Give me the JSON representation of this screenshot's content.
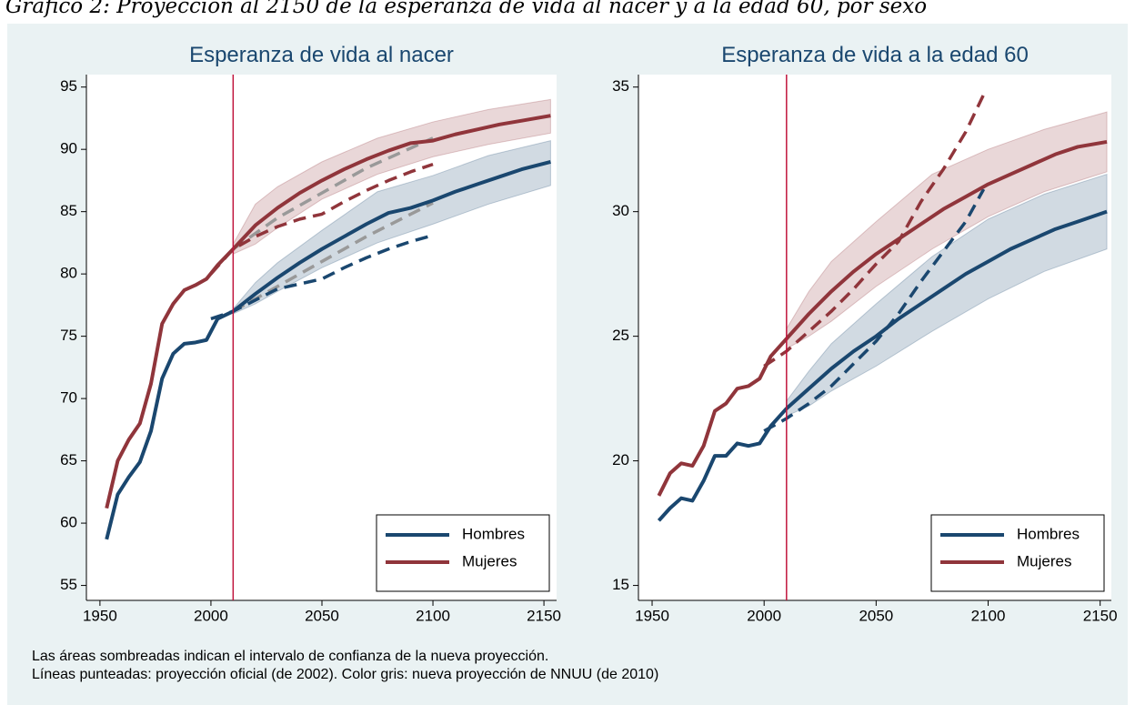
{
  "title": "Gráfico 2: Proyección al 2150 de la esperanza de vida al nacer y a la edad 60, por sexo",
  "notes": [
    "Las áreas sombreadas indican el intervalo de confianza de la nueva proyección.",
    "Líneas punteadas: proyección oficial (de 2002). Color gris: nueva proyección de NNUU (de 2010)"
  ],
  "chart_data": [
    {
      "type": "line",
      "title": "Esperanza de vida al nacer",
      "xlim": [
        1943.9,
        2155.7
      ],
      "ylim": [
        53.8,
        96
      ],
      "xticks": [
        1950,
        2000,
        2050,
        2100,
        2150
      ],
      "yticks": [
        55,
        60,
        65,
        70,
        75,
        80,
        85,
        90,
        95
      ],
      "grid": false,
      "legend": "lower right",
      "vline": 2010,
      "vline_color": "#c0143c",
      "series": [
        {
          "name": "Hombres",
          "color": "#1a476f",
          "x": [
            1953,
            1958,
            1963,
            1968,
            1973,
            1978,
            1983,
            1988,
            1993,
            1998,
            2003,
            2010,
            2020,
            2030,
            2040,
            2050,
            2060,
            2070,
            2080,
            2090,
            2100,
            2110,
            2120,
            2130,
            2140,
            2153
          ],
          "values": [
            58.7,
            62.3,
            63.7,
            64.9,
            67.4,
            71.6,
            73.6,
            74.4,
            74.5,
            74.7,
            76.4,
            77.0,
            78.4,
            79.7,
            80.9,
            82.0,
            83.0,
            84.0,
            84.9,
            85.3,
            85.9,
            86.6,
            87.2,
            87.8,
            88.4,
            89.0
          ],
          "band": {
            "x": [
              2010,
              2020,
              2030,
              2050,
              2075,
              2100,
              2125,
              2153
            ],
            "lower": [
              76.8,
              77.6,
              78.6,
              80.5,
              82.5,
              84.0,
              85.6,
              87.1
            ],
            "upper": [
              77.2,
              79.3,
              80.9,
              83.5,
              86.6,
              87.9,
              89.5,
              90.7
            ]
          }
        },
        {
          "name": "Mujeres",
          "color": "#90353b",
          "x": [
            1953,
            1958,
            1963,
            1968,
            1973,
            1978,
            1983,
            1988,
            1993,
            1998,
            2003,
            2010,
            2020,
            2030,
            2040,
            2050,
            2060,
            2070,
            2080,
            2090,
            2100,
            2110,
            2120,
            2130,
            2140,
            2153
          ],
          "values": [
            61.2,
            65.0,
            66.7,
            68.0,
            71.2,
            76.0,
            77.6,
            78.7,
            79.1,
            79.6,
            80.7,
            82.0,
            83.9,
            85.3,
            86.5,
            87.5,
            88.4,
            89.2,
            89.9,
            90.5,
            90.7,
            91.2,
            91.6,
            92.0,
            92.3,
            92.7
          ],
          "band": {
            "x": [
              2010,
              2020,
              2030,
              2050,
              2075,
              2100,
              2125,
              2153
            ],
            "lower": [
              81.6,
              82.4,
              83.7,
              86.0,
              88.0,
              89.4,
              90.4,
              91.3
            ],
            "upper": [
              82.4,
              85.6,
              87.0,
              89.0,
              90.9,
              92.2,
              93.2,
              94.0
            ]
          }
        },
        {
          "color": "#999999",
          "dashed": true,
          "x": [
            2010,
            2030,
            2050,
            2070,
            2100
          ],
          "values": [
            77.0,
            79.0,
            81.0,
            83.0,
            85.7
          ]
        },
        {
          "color": "#999999",
          "dashed": true,
          "x": [
            2010,
            2030,
            2050,
            2070,
            2100
          ],
          "values": [
            82.0,
            84.5,
            86.5,
            88.5,
            90.9
          ]
        },
        {
          "color": "#1a476f",
          "dashed": true,
          "x": [
            2000,
            2010,
            2020,
            2030,
            2040,
            2050,
            2060,
            2070,
            2080,
            2090,
            2100
          ],
          "values": [
            76.4,
            77.0,
            77.9,
            78.8,
            79.2,
            79.6,
            80.5,
            81.3,
            82.0,
            82.6,
            83.1
          ]
        },
        {
          "color": "#90353b",
          "dashed": true,
          "x": [
            2000,
            2010,
            2020,
            2030,
            2040,
            2050,
            2060,
            2070,
            2080,
            2090,
            2100
          ],
          "values": [
            80.0,
            82.0,
            83.0,
            83.8,
            84.4,
            84.8,
            85.8,
            86.7,
            87.5,
            88.2,
            88.8
          ]
        }
      ]
    },
    {
      "type": "line",
      "title": "Esperanza de vida a la edad 60",
      "xlim": [
        1943.9,
        2155
      ],
      "ylim": [
        14.4,
        35.5
      ],
      "xticks": [
        1950,
        2000,
        2050,
        2100,
        2150
      ],
      "yticks": [
        15,
        20,
        25,
        30,
        35
      ],
      "grid": false,
      "legend": "lower right",
      "vline": 2010,
      "vline_color": "#c0143c",
      "series": [
        {
          "name": "Hombres",
          "color": "#1a476f",
          "x": [
            1953,
            1958,
            1963,
            1968,
            1973,
            1978,
            1983,
            1988,
            1993,
            1998,
            2003,
            2010,
            2020,
            2030,
            2040,
            2050,
            2060,
            2070,
            2080,
            2090,
            2100,
            2110,
            2120,
            2130,
            2140,
            2153
          ],
          "values": [
            17.6,
            18.1,
            18.5,
            18.4,
            19.2,
            20.2,
            20.2,
            20.7,
            20.6,
            20.7,
            21.4,
            22.1,
            22.9,
            23.7,
            24.4,
            25.0,
            25.7,
            26.3,
            26.9,
            27.5,
            28.0,
            28.5,
            28.9,
            29.3,
            29.6,
            30.0
          ],
          "band": {
            "x": [
              2010,
              2020,
              2030,
              2050,
              2075,
              2100,
              2125,
              2153
            ],
            "lower": [
              21.8,
              22.2,
              22.8,
              23.8,
              25.2,
              26.5,
              27.6,
              28.5
            ],
            "upper": [
              22.4,
              23.6,
              24.7,
              26.3,
              28.2,
              29.7,
              30.7,
              31.5
            ]
          }
        },
        {
          "name": "Mujeres",
          "color": "#90353b",
          "x": [
            1953,
            1958,
            1963,
            1968,
            1973,
            1978,
            1983,
            1988,
            1993,
            1998,
            2003,
            2010,
            2020,
            2030,
            2040,
            2050,
            2060,
            2070,
            2080,
            2090,
            2100,
            2110,
            2120,
            2130,
            2140,
            2153
          ],
          "values": [
            18.6,
            19.5,
            19.9,
            19.8,
            20.6,
            22.0,
            22.3,
            22.9,
            23.0,
            23.3,
            24.2,
            24.9,
            25.9,
            26.8,
            27.6,
            28.3,
            28.9,
            29.5,
            30.1,
            30.6,
            31.1,
            31.5,
            31.9,
            32.3,
            32.6,
            32.8
          ],
          "band": {
            "x": [
              2010,
              2020,
              2030,
              2050,
              2075,
              2100,
              2125,
              2153
            ],
            "lower": [
              24.5,
              25.0,
              25.6,
              27.0,
              28.5,
              29.8,
              30.8,
              31.6
            ],
            "upper": [
              25.3,
              26.8,
              28.0,
              29.6,
              31.5,
              32.5,
              33.3,
              34.0
            ]
          }
        },
        {
          "color": "#1a476f",
          "dashed": true,
          "x": [
            2000,
            2010,
            2020,
            2030,
            2040,
            2050,
            2060,
            2070,
            2080,
            2090,
            2098
          ],
          "values": [
            21.2,
            21.7,
            22.3,
            23.0,
            23.9,
            24.8,
            25.9,
            27.2,
            28.4,
            29.6,
            30.9
          ]
        },
        {
          "color": "#90353b",
          "dashed": true,
          "x": [
            2000,
            2010,
            2020,
            2030,
            2040,
            2050,
            2060,
            2070,
            2080,
            2090,
            2098
          ],
          "values": [
            23.8,
            24.4,
            25.2,
            26.0,
            26.9,
            27.9,
            28.8,
            30.4,
            31.7,
            33.2,
            34.7
          ]
        }
      ]
    }
  ]
}
